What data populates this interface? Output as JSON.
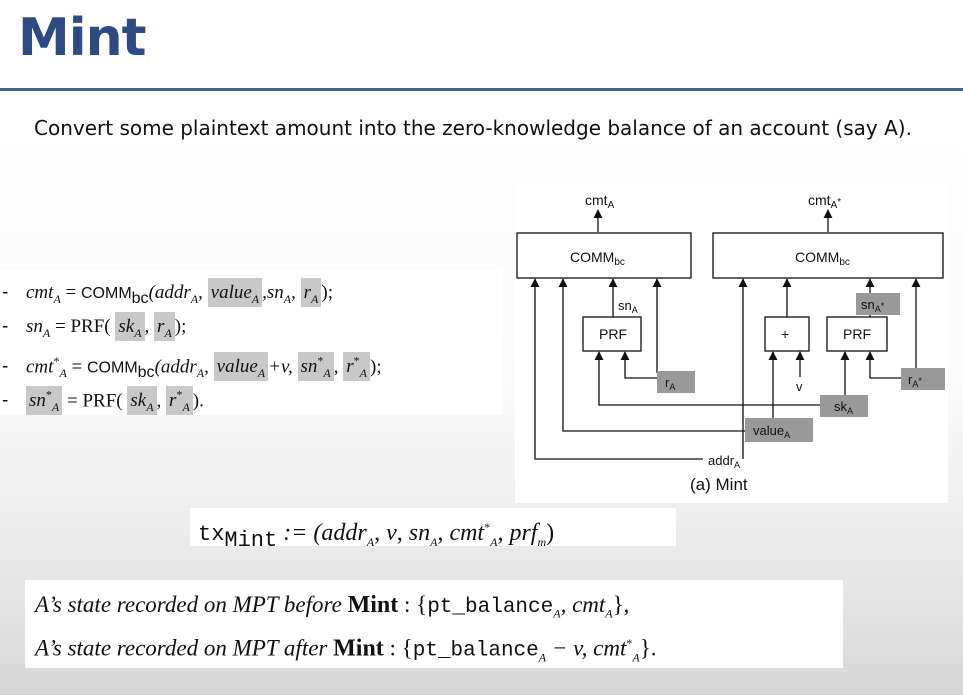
{
  "slide": {
    "title": "Mint",
    "intro": "Convert some plaintext amount into the zero-knowledge balance of an account (say A)."
  },
  "equations": {
    "bullet": "-",
    "eq1": {
      "cmt": "cmt",
      "sub_A": "A",
      "eq": " = ",
      "comm": "COMM",
      "comm_sub": "bc",
      "addr": "(addr",
      "value": "value",
      "sn": ",sn",
      "r": "r",
      "close": ");"
    },
    "eq2": {
      "sn": "sn",
      "sub_A": "A",
      "eq": " = PRF(",
      "sk": "sk",
      "r": "r",
      "close": ");"
    },
    "eq3": {
      "cmt": "cmt",
      "star": "*",
      "sub_A": "A",
      "eq": " = ",
      "comm": "COMM",
      "comm_sub": "bc",
      "addr": "(addr",
      "value": "value",
      "plusv": "+v,",
      "sn": "sn",
      "r": "r",
      "close": ");"
    },
    "eq4": {
      "sn": "sn",
      "star": "*",
      "sub_A": "A",
      "eq": " = PRF(",
      "sk": "sk",
      "r": "r",
      "close": ")."
    }
  },
  "diagram": {
    "caption": "(a) Mint",
    "left_output": "cmt",
    "right_output": "cmt",
    "sub_A": "A",
    "star": "*",
    "comm": "COMM",
    "comm_sub": "bc",
    "prf": "PRF",
    "plus": "+",
    "v": "v",
    "sn": "sn",
    "r": "r",
    "sk": "sk",
    "value": "value",
    "addr": "addr"
  },
  "tx": {
    "name": "tx",
    "name_sub": "Mint",
    "body": ":= (addr",
    "v": "v",
    "sn": "sn",
    "cmt": "cmt",
    "prf": "prf",
    "prf_sub": "m",
    "sub_A": "A",
    "star": "*",
    "close": ")"
  },
  "state": {
    "line1_pre": "A’s state recorded on MPT before ",
    "line1_bold": "Mint",
    "line1_colon": " : {",
    "pt": "pt_balance",
    "sub_A": "A",
    "line1_rest": ", cmt",
    "line1_close": "},",
    "line2_pre": "A’s state recorded on MPT after ",
    "line2_bold": "Mint",
    "line2_colon": " : {",
    "minus_v": " − v, cmt",
    "star": "*",
    "line2_close": "}."
  },
  "colors": {
    "title": "#2e4a83",
    "rule": "#4a6296",
    "highlight": "#c8c8c8",
    "label_box": "#999999"
  }
}
